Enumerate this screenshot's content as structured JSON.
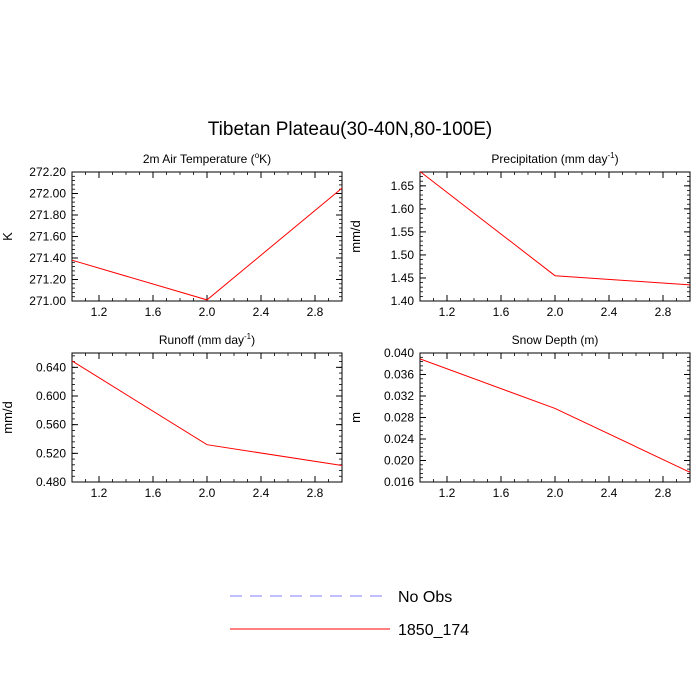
{
  "figure": {
    "title": "Tibetan Plateau(30-40N,80-100E)"
  },
  "legend": {
    "entries": [
      {
        "label": "No Obs",
        "color": "#8080ff",
        "dashed": true
      },
      {
        "label": "1850_174",
        "color": "#ff0000",
        "dashed": false
      }
    ]
  },
  "chart_data": [
    {
      "type": "line",
      "title": "2m Air Temperature (°K)",
      "title_parts": {
        "base": "2m Air Temperature (",
        "sup": "o",
        "tail": "K)"
      },
      "ylabel": "K",
      "xlabel": "",
      "xlim": [
        1.0,
        3.0
      ],
      "ylim": [
        271.0,
        272.2
      ],
      "xticks": [
        1.2,
        1.6,
        2.0,
        2.4,
        2.8
      ],
      "xtick_labels": [
        "1.2",
        "1.6",
        "2.0",
        "2.4",
        "2.8"
      ],
      "yticks": [
        271.0,
        271.2,
        271.4,
        271.6,
        271.8,
        272.0,
        272.2
      ],
      "ytick_labels": [
        "271.00",
        "271.20",
        "271.40",
        "271.60",
        "271.80",
        "272.00",
        "272.20"
      ],
      "series": [
        {
          "name": "1850_174",
          "color": "#ff0000",
          "x": [
            1,
            2,
            3
          ],
          "y": [
            271.38,
            271.01,
            272.05
          ]
        }
      ]
    },
    {
      "type": "line",
      "title": "Precipitation (mm day-1)",
      "title_parts": {
        "base": "Precipitation (mm day",
        "sup": "-1",
        "tail": ")"
      },
      "ylabel": "mm/d",
      "xlabel": "",
      "xlim": [
        1.0,
        3.0
      ],
      "ylim": [
        1.4,
        1.68
      ],
      "xticks": [
        1.2,
        1.6,
        2.0,
        2.4,
        2.8
      ],
      "xtick_labels": [
        "1.2",
        "1.6",
        "2.0",
        "2.4",
        "2.8"
      ],
      "yticks": [
        1.4,
        1.45,
        1.5,
        1.55,
        1.6,
        1.65
      ],
      "ytick_labels": [
        "1.40",
        "1.45",
        "1.50",
        "1.55",
        "1.60",
        "1.65"
      ],
      "series": [
        {
          "name": "1850_174",
          "color": "#ff0000",
          "x": [
            1,
            2,
            3
          ],
          "y": [
            1.681,
            1.455,
            1.435
          ]
        }
      ]
    },
    {
      "type": "line",
      "title": "Runoff (mm day-1)",
      "title_parts": {
        "base": "Runoff (mm day",
        "sup": "-1",
        "tail": ")"
      },
      "ylabel": "mm/d",
      "xlabel": "",
      "xlim": [
        1.0,
        3.0
      ],
      "ylim": [
        0.48,
        0.66
      ],
      "xticks": [
        1.2,
        1.6,
        2.0,
        2.4,
        2.8
      ],
      "xtick_labels": [
        "1.2",
        "1.6",
        "2.0",
        "2.4",
        "2.8"
      ],
      "yticks": [
        0.48,
        0.52,
        0.56,
        0.6,
        0.64
      ],
      "ytick_labels": [
        "0.480",
        "0.520",
        "0.560",
        "0.600",
        "0.640"
      ],
      "series": [
        {
          "name": "1850_174",
          "color": "#ff0000",
          "x": [
            1,
            2,
            3
          ],
          "y": [
            0.649,
            0.532,
            0.503
          ]
        }
      ]
    },
    {
      "type": "line",
      "title": "Snow Depth (m)",
      "title_parts": {
        "base": "Snow Depth (m)",
        "sup": "",
        "tail": ""
      },
      "ylabel": "m",
      "xlabel": "",
      "xlim": [
        1.0,
        3.0
      ],
      "ylim": [
        0.016,
        0.04
      ],
      "xticks": [
        1.2,
        1.6,
        2.0,
        2.4,
        2.8
      ],
      "xtick_labels": [
        "1.2",
        "1.6",
        "2.0",
        "2.4",
        "2.8"
      ],
      "yticks": [
        0.016,
        0.02,
        0.024,
        0.028,
        0.032,
        0.036,
        0.04
      ],
      "ytick_labels": [
        "0.016",
        "0.020",
        "0.024",
        "0.028",
        "0.032",
        "0.036",
        "0.040"
      ],
      "series": [
        {
          "name": "1850_174",
          "color": "#ff0000",
          "x": [
            1,
            2,
            3
          ],
          "y": [
            0.0389,
            0.0297,
            0.0178
          ]
        }
      ]
    }
  ]
}
